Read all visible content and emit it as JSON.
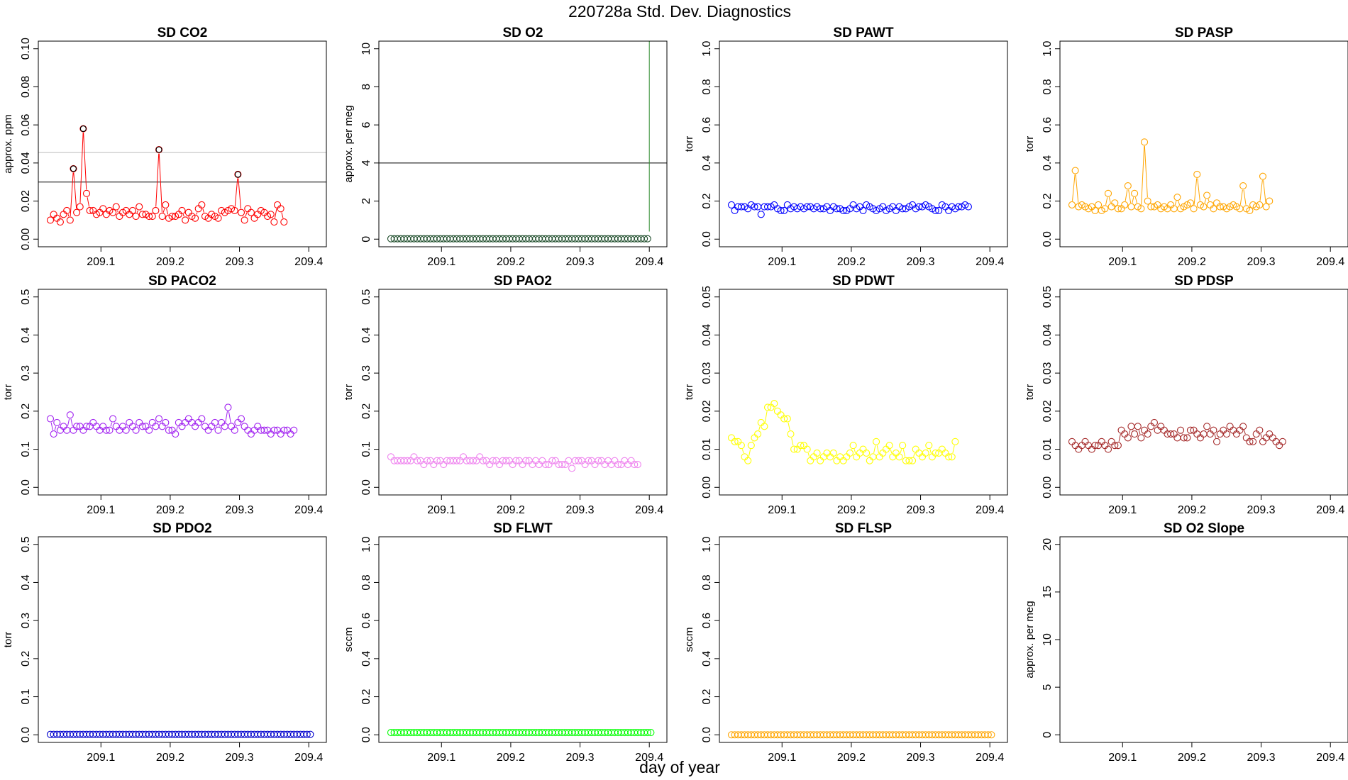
{
  "figure": {
    "title": "220728a   Std. Dev. Diagnostics",
    "xlabel": "day of year"
  },
  "chart_data": [
    {
      "type": "scatter",
      "title": "SD CO2",
      "ylabel": "approx. ppm",
      "xlim": [
        209.025,
        209.41
      ],
      "ylim": [
        0,
        0.1
      ],
      "xticks": [
        209.1,
        209.2,
        209.3,
        209.4
      ],
      "yticks": [
        0,
        0.02,
        0.04,
        0.06,
        0.08,
        0.1
      ],
      "ytick_labels": [
        "0.00",
        "0.02",
        "0.04",
        "0.06",
        "0.08",
        "0.10"
      ],
      "hlines": [
        {
          "y": 0.03,
          "color": "#000000"
        },
        {
          "y": 0.0455,
          "color": "#bbbbbb"
        }
      ],
      "series": [
        {
          "color": "#ff0000",
          "x_start": 209.027,
          "x_step": 0.00475,
          "y": [
            0.01,
            0.013,
            0.011,
            0.009,
            0.013,
            0.015,
            0.01,
            0.037,
            0.014,
            0.017,
            0.058,
            0.024,
            0.015,
            0.015,
            0.013,
            0.014,
            0.016,
            0.013,
            0.015,
            0.014,
            0.017,
            0.012,
            0.014,
            0.015,
            0.013,
            0.015,
            0.012,
            0.017,
            0.013,
            0.013,
            0.012,
            0.012,
            0.015,
            0.047,
            0.012,
            0.018,
            0.011,
            0.012,
            0.012,
            0.013,
            0.015,
            0.01,
            0.014,
            0.012,
            0.011,
            0.016,
            0.018,
            0.012,
            0.011,
            0.013,
            0.012,
            0.011,
            0.015,
            0.014,
            0.015,
            0.016,
            0.015,
            0.034,
            0.014,
            0.01,
            0.016,
            0.014,
            0.011,
            0.013,
            0.015,
            0.014,
            0.012,
            0.013,
            0.009,
            0.018,
            0.016,
            0.009
          ],
          "marked": [
            7,
            10,
            33,
            57
          ]
        }
      ]
    },
    {
      "type": "scatter",
      "title": "SD O2",
      "ylabel": "approx. per meg",
      "xlim": [
        209.025,
        209.41
      ],
      "ylim": [
        0,
        10
      ],
      "xticks": [
        209.1,
        209.2,
        209.3,
        209.4
      ],
      "yticks": [
        0,
        2,
        4,
        6,
        8,
        10
      ],
      "ytick_labels": [
        "0",
        "2",
        "4",
        "6",
        "8",
        "10"
      ],
      "hlines": [
        {
          "y": 4,
          "color": "#000000"
        }
      ],
      "vlines": [
        {
          "x": 209.4,
          "y_from": 0.4,
          "color": "#2e8b2e"
        }
      ],
      "series": [
        {
          "color": "#1e4d2b",
          "x_start": 209.027,
          "x_step": 0.00475,
          "y_const": 0.02,
          "n": 79
        }
      ]
    },
    {
      "type": "scatter",
      "title": "SD PAWT",
      "ylabel": "torr",
      "xlim": [
        209.025,
        209.41
      ],
      "ylim": [
        0,
        1.0
      ],
      "xticks": [
        209.1,
        209.2,
        209.3,
        209.4
      ],
      "yticks": [
        0,
        0.2,
        0.4,
        0.6,
        0.8,
        1.0
      ],
      "ytick_labels": [
        "0.0",
        "0.2",
        "0.4",
        "0.6",
        "0.8",
        "1.0"
      ],
      "series": [
        {
          "color": "#0000ff",
          "x_start": 209.027,
          "x_step": 0.00475,
          "y": [
            0.18,
            0.15,
            0.17,
            0.17,
            0.17,
            0.16,
            0.18,
            0.17,
            0.17,
            0.13,
            0.17,
            0.17,
            0.17,
            0.18,
            0.16,
            0.15,
            0.15,
            0.18,
            0.16,
            0.17,
            0.16,
            0.17,
            0.16,
            0.17,
            0.17,
            0.16,
            0.17,
            0.16,
            0.16,
            0.17,
            0.15,
            0.17,
            0.16,
            0.16,
            0.15,
            0.15,
            0.16,
            0.18,
            0.16,
            0.17,
            0.15,
            0.18,
            0.17,
            0.16,
            0.15,
            0.16,
            0.17,
            0.15,
            0.16,
            0.17,
            0.15,
            0.17,
            0.16,
            0.16,
            0.17,
            0.18,
            0.16,
            0.17,
            0.17,
            0.18,
            0.17,
            0.16,
            0.15,
            0.15,
            0.18,
            0.17,
            0.15,
            0.17,
            0.16,
            0.17,
            0.17,
            0.18,
            0.17
          ]
        }
      ]
    },
    {
      "type": "scatter",
      "title": "SD PASP",
      "ylabel": "torr",
      "xlim": [
        209.025,
        209.41
      ],
      "ylim": [
        0,
        1.0
      ],
      "xticks": [
        209.1,
        209.2,
        209.3,
        209.4
      ],
      "yticks": [
        0,
        0.2,
        0.4,
        0.6,
        0.8,
        1.0
      ],
      "ytick_labels": [
        "0.0",
        "0.2",
        "0.4",
        "0.6",
        "0.8",
        "1.0"
      ],
      "series": [
        {
          "color": "#ffa500",
          "x_start": 209.027,
          "x_step": 0.00475,
          "y": [
            0.18,
            0.36,
            0.17,
            0.18,
            0.17,
            0.16,
            0.17,
            0.15,
            0.18,
            0.15,
            0.16,
            0.24,
            0.17,
            0.19,
            0.16,
            0.16,
            0.18,
            0.28,
            0.17,
            0.24,
            0.17,
            0.16,
            0.51,
            0.2,
            0.17,
            0.17,
            0.18,
            0.16,
            0.17,
            0.16,
            0.18,
            0.16,
            0.22,
            0.16,
            0.17,
            0.18,
            0.19,
            0.16,
            0.34,
            0.18,
            0.17,
            0.23,
            0.18,
            0.16,
            0.19,
            0.17,
            0.17,
            0.16,
            0.17,
            0.18,
            0.17,
            0.16,
            0.28,
            0.16,
            0.15,
            0.18,
            0.17,
            0.18,
            0.33,
            0.17,
            0.2
          ]
        }
      ]
    },
    {
      "type": "scatter",
      "title": "SD PACO2",
      "ylabel": "torr",
      "xlim": [
        209.025,
        209.41
      ],
      "ylim": [
        0,
        0.5
      ],
      "xticks": [
        209.1,
        209.2,
        209.3,
        209.4
      ],
      "yticks": [
        0,
        0.1,
        0.2,
        0.3,
        0.4,
        0.5
      ],
      "ytick_labels": [
        "0.0",
        "0.1",
        "0.2",
        "0.3",
        "0.4",
        "0.5"
      ],
      "series": [
        {
          "color": "#a020f0",
          "x_start": 209.027,
          "x_step": 0.00475,
          "y": [
            0.18,
            0.14,
            0.17,
            0.15,
            0.16,
            0.15,
            0.19,
            0.15,
            0.16,
            0.16,
            0.15,
            0.16,
            0.16,
            0.17,
            0.16,
            0.15,
            0.16,
            0.15,
            0.15,
            0.18,
            0.16,
            0.15,
            0.16,
            0.15,
            0.17,
            0.16,
            0.15,
            0.17,
            0.16,
            0.16,
            0.15,
            0.17,
            0.16,
            0.18,
            0.16,
            0.17,
            0.15,
            0.15,
            0.14,
            0.17,
            0.16,
            0.17,
            0.18,
            0.17,
            0.16,
            0.17,
            0.18,
            0.16,
            0.15,
            0.16,
            0.17,
            0.15,
            0.17,
            0.16,
            0.21,
            0.16,
            0.15,
            0.17,
            0.18,
            0.16,
            0.15,
            0.14,
            0.15,
            0.16,
            0.15,
            0.15,
            0.15,
            0.14,
            0.15,
            0.15,
            0.14,
            0.15,
            0.15,
            0.14,
            0.15
          ]
        }
      ]
    },
    {
      "type": "scatter",
      "title": "SD PAO2",
      "ylabel": "torr",
      "xlim": [
        209.025,
        209.41
      ],
      "ylim": [
        0,
        0.5
      ],
      "xticks": [
        209.1,
        209.2,
        209.3,
        209.4
      ],
      "yticks": [
        0,
        0.1,
        0.2,
        0.3,
        0.4,
        0.5
      ],
      "ytick_labels": [
        "0.0",
        "0.1",
        "0.2",
        "0.3",
        "0.4",
        "0.5"
      ],
      "series": [
        {
          "color": "#ee82ee",
          "x_start": 209.027,
          "x_step": 0.00475,
          "y": [
            0.08,
            0.07,
            0.07,
            0.07,
            0.07,
            0.07,
            0.07,
            0.08,
            0.07,
            0.07,
            0.06,
            0.07,
            0.07,
            0.06,
            0.07,
            0.07,
            0.06,
            0.07,
            0.07,
            0.07,
            0.07,
            0.07,
            0.08,
            0.07,
            0.07,
            0.07,
            0.07,
            0.08,
            0.07,
            0.07,
            0.06,
            0.07,
            0.07,
            0.06,
            0.07,
            0.07,
            0.07,
            0.06,
            0.07,
            0.07,
            0.06,
            0.07,
            0.07,
            0.06,
            0.07,
            0.06,
            0.07,
            0.06,
            0.06,
            0.07,
            0.07,
            0.06,
            0.06,
            0.06,
            0.07,
            0.05,
            0.07,
            0.07,
            0.07,
            0.06,
            0.07,
            0.07,
            0.06,
            0.07,
            0.07,
            0.06,
            0.07,
            0.06,
            0.07,
            0.06,
            0.06,
            0.07,
            0.06,
            0.07,
            0.06,
            0.06
          ]
        }
      ]
    },
    {
      "type": "scatter",
      "title": "SD PDWT",
      "ylabel": "torr",
      "xlim": [
        209.025,
        209.41
      ],
      "ylim": [
        0,
        0.05
      ],
      "xticks": [
        209.1,
        209.2,
        209.3,
        209.4
      ],
      "yticks": [
        0,
        0.01,
        0.02,
        0.03,
        0.04,
        0.05
      ],
      "ytick_labels": [
        "0.00",
        "0.01",
        "0.02",
        "0.03",
        "0.04",
        "0.05"
      ],
      "series": [
        {
          "color": "#ffff00",
          "x_start": 209.027,
          "x_step": 0.00475,
          "y": [
            0.013,
            0.012,
            0.012,
            0.011,
            0.008,
            0.007,
            0.011,
            0.013,
            0.014,
            0.017,
            0.016,
            0.021,
            0.021,
            0.022,
            0.02,
            0.019,
            0.018,
            0.018,
            0.014,
            0.01,
            0.01,
            0.011,
            0.011,
            0.01,
            0.007,
            0.008,
            0.009,
            0.007,
            0.008,
            0.009,
            0.008,
            0.009,
            0.007,
            0.008,
            0.007,
            0.008,
            0.009,
            0.011,
            0.008,
            0.009,
            0.01,
            0.009,
            0.007,
            0.008,
            0.012,
            0.008,
            0.009,
            0.01,
            0.011,
            0.008,
            0.009,
            0.008,
            0.011,
            0.007,
            0.007,
            0.007,
            0.01,
            0.009,
            0.008,
            0.009,
            0.011,
            0.008,
            0.009,
            0.009,
            0.01,
            0.009,
            0.008,
            0.008,
            0.012
          ]
        }
      ]
    },
    {
      "type": "scatter",
      "title": "SD PDSP",
      "ylabel": "torr",
      "xlim": [
        209.025,
        209.41
      ],
      "ylim": [
        0,
        0.05
      ],
      "xticks": [
        209.1,
        209.2,
        209.3,
        209.4
      ],
      "yticks": [
        0,
        0.01,
        0.02,
        0.03,
        0.04,
        0.05
      ],
      "ytick_labels": [
        "0.00",
        "0.01",
        "0.02",
        "0.03",
        "0.04",
        "0.05"
      ],
      "series": [
        {
          "color": "#a52a2a",
          "x_start": 209.027,
          "x_step": 0.00475,
          "y": [
            0.012,
            0.011,
            0.01,
            0.011,
            0.012,
            0.011,
            0.01,
            0.011,
            0.011,
            0.012,
            0.011,
            0.01,
            0.012,
            0.011,
            0.011,
            0.015,
            0.014,
            0.013,
            0.016,
            0.014,
            0.016,
            0.013,
            0.015,
            0.014,
            0.016,
            0.017,
            0.015,
            0.016,
            0.015,
            0.014,
            0.014,
            0.014,
            0.013,
            0.015,
            0.013,
            0.013,
            0.015,
            0.015,
            0.014,
            0.013,
            0.014,
            0.016,
            0.014,
            0.015,
            0.012,
            0.014,
            0.015,
            0.014,
            0.016,
            0.015,
            0.014,
            0.015,
            0.016,
            0.013,
            0.012,
            0.012,
            0.014,
            0.015,
            0.012,
            0.013,
            0.014,
            0.013,
            0.012,
            0.011,
            0.012
          ]
        }
      ]
    },
    {
      "type": "scatter",
      "title": "SD PDO2",
      "ylabel": "torr",
      "xlim": [
        209.025,
        209.41
      ],
      "ylim": [
        0,
        0.5
      ],
      "xticks": [
        209.1,
        209.2,
        209.3,
        209.4
      ],
      "yticks": [
        0,
        0.1,
        0.2,
        0.3,
        0.4,
        0.5
      ],
      "ytick_labels": [
        "0.0",
        "0.1",
        "0.2",
        "0.3",
        "0.4",
        "0.5"
      ],
      "series": [
        {
          "color": "#0000cd",
          "x_start": 209.027,
          "x_step": 0.00475,
          "y_const": 0.001,
          "n": 80
        }
      ]
    },
    {
      "type": "scatter",
      "title": "SD FLWT",
      "ylabel": "sccm",
      "xlim": [
        209.025,
        209.41
      ],
      "ylim": [
        0,
        1.0
      ],
      "xticks": [
        209.1,
        209.2,
        209.3,
        209.4
      ],
      "yticks": [
        0,
        0.2,
        0.4,
        0.6,
        0.8,
        1.0
      ],
      "ytick_labels": [
        "0.0",
        "0.2",
        "0.4",
        "0.6",
        "0.8",
        "1.0"
      ],
      "series": [
        {
          "color": "#00ff00",
          "x_start": 209.027,
          "x_step": 0.00475,
          "y_const": 0.012,
          "n": 80
        }
      ]
    },
    {
      "type": "scatter",
      "title": "SD FLSP",
      "ylabel": "sccm",
      "xlim": [
        209.025,
        209.41
      ],
      "ylim": [
        0,
        1.0
      ],
      "xticks": [
        209.1,
        209.2,
        209.3,
        209.4
      ],
      "yticks": [
        0,
        0.2,
        0.4,
        0.6,
        0.8,
        1.0
      ],
      "ytick_labels": [
        "0.0",
        "0.2",
        "0.4",
        "0.6",
        "0.8",
        "1.0"
      ],
      "series": [
        {
          "color": "#ffa500",
          "x_start": 209.027,
          "x_step": 0.00475,
          "y_const": 0.0,
          "n": 80
        }
      ]
    },
    {
      "type": "scatter",
      "title": "SD O2 Slope",
      "ylabel": "approx. per meg",
      "xlim": [
        209.025,
        209.41
      ],
      "ylim": [
        0,
        20
      ],
      "xticks": [
        209.1,
        209.2,
        209.3,
        209.4
      ],
      "yticks": [
        0,
        5,
        10,
        15,
        20
      ],
      "ytick_labels": [
        "0",
        "5",
        "10",
        "15",
        "20"
      ],
      "series": []
    }
  ]
}
